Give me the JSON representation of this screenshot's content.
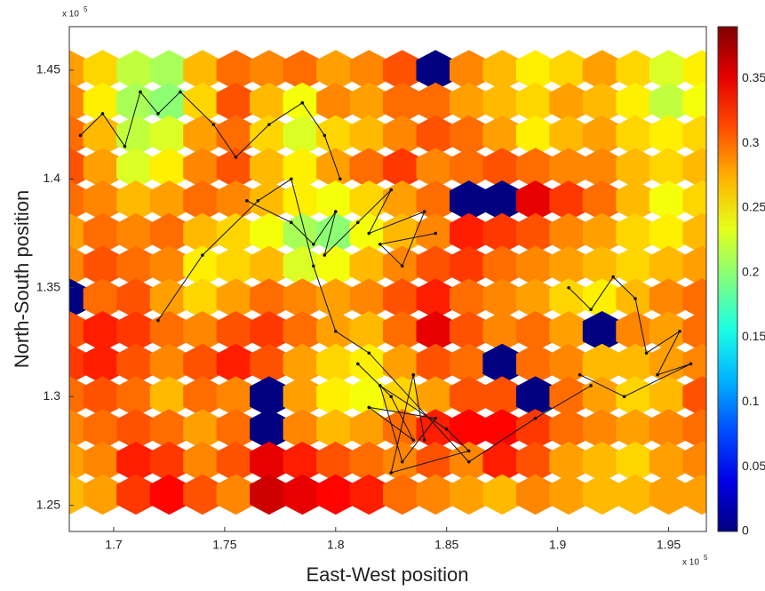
{
  "chart_data": {
    "type": "heatmap",
    "x_label": "East-West position",
    "y_label": "North-South position",
    "multiplier": {
      "base": "x 10",
      "power": "5"
    },
    "xlim": [
      168000,
      196700
    ],
    "ylim": [
      123800,
      147000
    ],
    "xticks": [
      {
        "value": 170000,
        "label": "1.7"
      },
      {
        "value": 175000,
        "label": "1.75"
      },
      {
        "value": 180000,
        "label": "1.8"
      },
      {
        "value": 185000,
        "label": "1.85"
      },
      {
        "value": 190000,
        "label": "1.9"
      },
      {
        "value": 195000,
        "label": "1.95"
      }
    ],
    "yticks": [
      {
        "value": 125000,
        "label": "1.25"
      },
      {
        "value": 130000,
        "label": "1.3"
      },
      {
        "value": 135000,
        "label": "1.35"
      },
      {
        "value": 140000,
        "label": "1.4"
      },
      {
        "value": 145000,
        "label": "1.45"
      }
    ],
    "colormap": "jet",
    "clim": [
      0,
      0.39
    ],
    "cticks": [
      0,
      0.05,
      0.1,
      0.15,
      0.2,
      0.25,
      0.3,
      0.35
    ],
    "x": [
      168000,
      169500,
      171000,
      172500,
      174000,
      175500,
      177000,
      178500,
      180000,
      181500,
      183000,
      184500,
      186000,
      187500,
      189000,
      190500,
      192000,
      193500,
      195000,
      196500
    ],
    "y": [
      145000,
      143500,
      142000,
      140500,
      139000,
      137500,
      136000,
      134500,
      133000,
      131500,
      130000,
      128500,
      127000,
      125500
    ],
    "z": [
      [
        0.28,
        0.26,
        0.22,
        0.21,
        0.27,
        0.3,
        0.29,
        0.3,
        0.28,
        0.29,
        0.31,
        0.0,
        0.29,
        0.27,
        0.25,
        0.26,
        0.28,
        0.26,
        0.23,
        0.25
      ],
      [
        0.29,
        0.25,
        0.21,
        0.2,
        0.26,
        0.31,
        0.27,
        0.24,
        0.29,
        0.28,
        0.3,
        0.3,
        0.28,
        0.27,
        0.26,
        0.28,
        0.27,
        0.25,
        0.22,
        0.24
      ],
      [
        0.3,
        0.27,
        0.22,
        0.23,
        0.28,
        0.3,
        0.26,
        0.23,
        0.26,
        0.27,
        0.29,
        0.31,
        0.3,
        0.28,
        0.25,
        0.27,
        0.28,
        0.26,
        0.25,
        0.26
      ],
      [
        0.31,
        0.28,
        0.23,
        0.25,
        0.29,
        0.31,
        0.27,
        0.25,
        0.28,
        0.3,
        0.32,
        0.29,
        0.3,
        0.31,
        0.3,
        0.29,
        0.29,
        0.27,
        0.26,
        0.27
      ],
      [
        0.3,
        0.29,
        0.27,
        0.28,
        0.3,
        0.29,
        0.27,
        0.25,
        0.24,
        0.26,
        0.28,
        0.3,
        0.0,
        0.0,
        0.35,
        0.32,
        0.3,
        0.27,
        0.24,
        0.26
      ],
      [
        0.28,
        0.3,
        0.29,
        0.3,
        0.27,
        0.26,
        0.24,
        0.21,
        0.2,
        0.24,
        0.27,
        0.29,
        0.33,
        0.32,
        0.31,
        0.29,
        0.28,
        0.26,
        0.25,
        0.27
      ],
      [
        0.29,
        0.31,
        0.3,
        0.29,
        0.25,
        0.26,
        0.27,
        0.23,
        0.24,
        0.27,
        0.29,
        0.31,
        0.32,
        0.3,
        0.29,
        0.28,
        0.27,
        0.26,
        0.27,
        0.28
      ],
      [
        0.0,
        0.3,
        0.31,
        0.28,
        0.26,
        0.28,
        0.3,
        0.29,
        0.28,
        0.29,
        0.31,
        0.33,
        0.3,
        0.29,
        0.28,
        0.26,
        0.25,
        0.27,
        0.29,
        0.3
      ],
      [
        0.31,
        0.33,
        0.32,
        0.3,
        0.29,
        0.31,
        0.32,
        0.3,
        0.28,
        0.27,
        0.3,
        0.35,
        0.31,
        0.29,
        0.3,
        0.28,
        0.0,
        0.29,
        0.28,
        0.3
      ],
      [
        0.32,
        0.33,
        0.31,
        0.29,
        0.31,
        0.33,
        0.31,
        0.28,
        0.26,
        0.25,
        0.28,
        0.31,
        0.3,
        0.0,
        0.3,
        0.29,
        0.27,
        0.27,
        0.28,
        0.29
      ],
      [
        0.3,
        0.31,
        0.3,
        0.27,
        0.3,
        0.29,
        0.0,
        0.28,
        0.25,
        0.24,
        0.26,
        0.28,
        0.31,
        0.31,
        0.0,
        0.3,
        0.28,
        0.26,
        0.27,
        0.31
      ],
      [
        0.29,
        0.3,
        0.31,
        0.3,
        0.28,
        0.3,
        0.0,
        0.29,
        0.27,
        0.28,
        0.3,
        0.33,
        0.34,
        0.34,
        0.32,
        0.3,
        0.29,
        0.28,
        0.29,
        0.3
      ],
      [
        0.28,
        0.29,
        0.33,
        0.32,
        0.29,
        0.31,
        0.35,
        0.33,
        0.31,
        0.3,
        0.29,
        0.31,
        0.29,
        0.33,
        0.31,
        0.28,
        0.27,
        0.26,
        0.28,
        0.29
      ],
      [
        0.27,
        0.28,
        0.32,
        0.34,
        0.31,
        0.29,
        0.36,
        0.35,
        0.34,
        0.33,
        0.3,
        0.29,
        0.28,
        0.27,
        0.29,
        0.28,
        0.27,
        0.27,
        0.28,
        0.28
      ]
    ],
    "track_color": "#111111",
    "tracks": [
      {
        "x": [
          168500,
          169500,
          170500,
          171200,
          172000,
          173000,
          174500,
          175500,
          177000,
          178500,
          179500,
          180200
        ],
        "y": [
          142000,
          143000,
          141500,
          144000,
          143000,
          144000,
          142500,
          141000,
          142500,
          143500,
          142000,
          140000
        ]
      },
      {
        "x": [
          176000,
          178000,
          179000,
          180000,
          179500,
          181000,
          182500,
          181500,
          184000,
          183000,
          182000,
          184500
        ],
        "y": [
          139000,
          138000,
          137000,
          138500,
          136500,
          138000,
          139500,
          137500,
          138500,
          136000,
          137000,
          137500
        ]
      },
      {
        "x": [
          181000,
          182500,
          183500,
          181500,
          184500,
          183000,
          182000,
          185000,
          186000,
          182500,
          183500,
          184000
        ],
        "y": [
          131500,
          130000,
          128000,
          129500,
          129000,
          127000,
          130500,
          128500,
          127500,
          126500,
          131000,
          128000
        ]
      },
      {
        "x": [
          190500,
          191500,
          192500,
          193500,
          194000,
          195500,
          194500,
          196000,
          193000,
          191000
        ],
        "y": [
          135000,
          134000,
          135500,
          134500,
          132000,
          133000,
          131000,
          131500,
          130000,
          131000
        ]
      },
      {
        "x": [
          172000,
          174000,
          176500,
          178000,
          179000,
          180000,
          181500,
          186000,
          189000,
          191500
        ],
        "y": [
          133500,
          136500,
          139000,
          140000,
          136000,
          133000,
          132000,
          127000,
          129000,
          130500
        ]
      }
    ]
  }
}
